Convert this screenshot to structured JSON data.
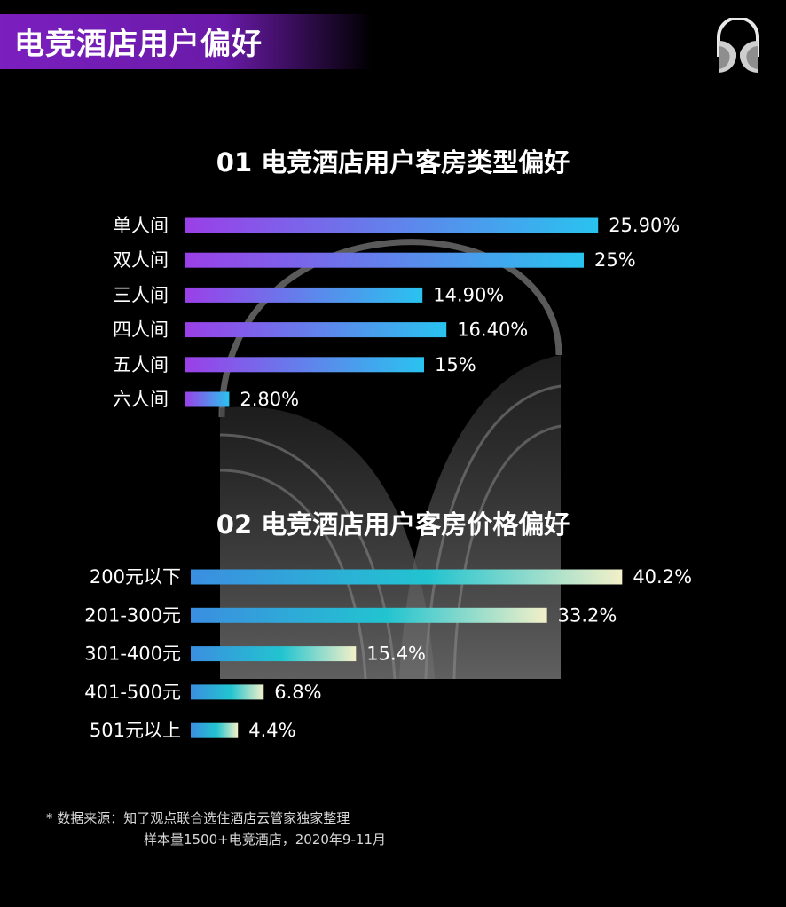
{
  "header": {
    "title": "电竞酒店用户偏好"
  },
  "logo": {
    "icon": "headphones-logo-icon"
  },
  "chart_data": [
    {
      "type": "bar",
      "orientation": "horizontal",
      "title": "01 电竞酒店用户客房类型偏好",
      "categories": [
        "单人间",
        "双人间",
        "三人间",
        "四人间",
        "五人间",
        "六人间"
      ],
      "values": [
        25.9,
        25.0,
        14.9,
        16.4,
        15.0,
        2.8
      ],
      "data_labels": [
        "25.90%",
        "25%",
        "14.90%",
        "16.40%",
        "15%",
        "2.80%"
      ],
      "unit": "%",
      "xlim": [
        0,
        26
      ],
      "grid": false,
      "colors": [
        "#9b3fe8",
        "#29c3ef"
      ]
    },
    {
      "type": "bar",
      "orientation": "horizontal",
      "title": "02 电竞酒店用户客房价格偏好",
      "categories": [
        "200元以下",
        "201-300元",
        "301-400元",
        "401-500元",
        "501元以上"
      ],
      "values": [
        40.2,
        33.2,
        15.4,
        6.8,
        4.4
      ],
      "data_labels": [
        "40.2%",
        "33.2%",
        "15.4%",
        "6.8%",
        "4.4%"
      ],
      "unit": "%",
      "xlim": [
        0,
        41
      ],
      "grid": false,
      "colors": [
        "#3b8ee0",
        "#22c4d0",
        "#f3f0c8"
      ]
    }
  ],
  "footnote": {
    "line1": "* 数据来源：知了观点联合选住酒店云管家独家整理",
    "line2": "样本量1500+电竞酒店，2020年9-11月"
  }
}
